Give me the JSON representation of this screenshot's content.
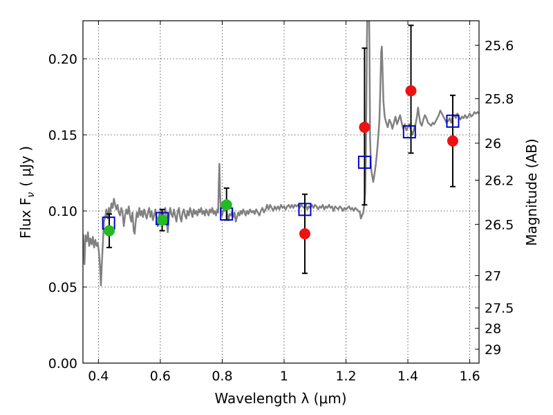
{
  "chart_data": {
    "type": "scatter",
    "xlabel": "Wavelength  λ (μm)",
    "ylabel": "Flux  F",
    "ylabel_sub": "ν",
    "ylabel_unit": "( μJy )",
    "y2label": "Magnitude (AB)",
    "xlim": [
      0.35,
      1.63
    ],
    "ylim": [
      0.0,
      0.225
    ],
    "grid": true,
    "x_ticks": [
      {
        "v": 0.4,
        "label": "0.4"
      },
      {
        "v": 0.6,
        "label": "0.6"
      },
      {
        "v": 0.8,
        "label": "0.8"
      },
      {
        "v": 1.0,
        "label": "1"
      },
      {
        "v": 1.2,
        "label": "1.2"
      },
      {
        "v": 1.4,
        "label": "1.4"
      },
      {
        "v": 1.6,
        "label": "1.6"
      }
    ],
    "y_ticks": [
      {
        "v": 0.0,
        "label": "0.00"
      },
      {
        "v": 0.05,
        "label": "0.05"
      },
      {
        "v": 0.1,
        "label": "0.10"
      },
      {
        "v": 0.15,
        "label": "0.15"
      },
      {
        "v": 0.2,
        "label": "0.20"
      }
    ],
    "mag_ticks": [
      {
        "mag": 25.6,
        "label": "25.6"
      },
      {
        "mag": 25.8,
        "label": "25.8"
      },
      {
        "mag": 26.0,
        "label": "26"
      },
      {
        "mag": 26.2,
        "label": "26.2"
      },
      {
        "mag": 26.5,
        "label": "26.5"
      },
      {
        "mag": 27.0,
        "label": "27"
      },
      {
        "mag": 27.5,
        "label": "27.5"
      },
      {
        "mag": 28.0,
        "label": "28"
      },
      {
        "mag": 29.0,
        "label": "29"
      }
    ],
    "model_spectrum": {
      "color": "#808080",
      "points": [
        [
          0.35,
          0.085
        ],
        [
          0.355,
          0.065
        ],
        [
          0.358,
          0.084
        ],
        [
          0.362,
          0.08
        ],
        [
          0.366,
          0.086
        ],
        [
          0.37,
          0.077
        ],
        [
          0.374,
          0.082
        ],
        [
          0.378,
          0.078
        ],
        [
          0.382,
          0.083
        ],
        [
          0.386,
          0.076
        ],
        [
          0.39,
          0.081
        ],
        [
          0.394,
          0.077
        ],
        [
          0.398,
          0.079
        ],
        [
          0.402,
          0.072
        ],
        [
          0.405,
          0.064
        ],
        [
          0.408,
          0.051
        ],
        [
          0.411,
          0.065
        ],
        [
          0.414,
          0.078
        ],
        [
          0.418,
          0.093
        ],
        [
          0.422,
          0.096
        ],
        [
          0.426,
          0.101
        ],
        [
          0.43,
          0.095
        ],
        [
          0.434,
          0.102
        ],
        [
          0.438,
          0.098
        ],
        [
          0.442,
          0.105
        ],
        [
          0.446,
          0.102
        ],
        [
          0.45,
          0.108
        ],
        [
          0.454,
          0.104
        ],
        [
          0.458,
          0.101
        ],
        [
          0.462,
          0.104
        ],
        [
          0.466,
          0.099
        ],
        [
          0.47,
          0.097
        ],
        [
          0.474,
          0.102
        ],
        [
          0.478,
          0.099
        ],
        [
          0.482,
          0.09
        ],
        [
          0.486,
          0.097
        ],
        [
          0.49,
          0.101
        ],
        [
          0.494,
          0.098
        ],
        [
          0.498,
          0.103
        ],
        [
          0.502,
          0.097
        ],
        [
          0.506,
          0.093
        ],
        [
          0.51,
          0.099
        ],
        [
          0.514,
          0.087
        ],
        [
          0.517,
          0.085
        ],
        [
          0.52,
          0.092
        ],
        [
          0.524,
          0.099
        ],
        [
          0.528,
          0.096
        ],
        [
          0.532,
          0.102
        ],
        [
          0.536,
          0.097
        ],
        [
          0.54,
          0.1
        ],
        [
          0.544,
          0.096
        ],
        [
          0.548,
          0.101
        ],
        [
          0.552,
          0.098
        ],
        [
          0.556,
          0.095
        ],
        [
          0.56,
          0.099
        ],
        [
          0.564,
          0.102
        ],
        [
          0.568,
          0.096
        ],
        [
          0.572,
          0.1
        ],
        [
          0.576,
          0.094
        ],
        [
          0.58,
          0.097
        ],
        [
          0.584,
          0.101
        ],
        [
          0.588,
          0.095
        ],
        [
          0.592,
          0.09
        ],
        [
          0.596,
          0.097
        ],
        [
          0.6,
          0.1
        ],
        [
          0.604,
          0.096
        ],
        [
          0.608,
          0.091
        ],
        [
          0.612,
          0.099
        ],
        [
          0.616,
          0.102
        ],
        [
          0.62,
          0.095
        ],
        [
          0.624,
          0.086
        ],
        [
          0.628,
          0.096
        ],
        [
          0.632,
          0.102
        ],
        [
          0.636,
          0.098
        ],
        [
          0.64,
          0.096
        ],
        [
          0.644,
          0.101
        ],
        [
          0.648,
          0.097
        ],
        [
          0.652,
          0.093
        ],
        [
          0.656,
          0.099
        ],
        [
          0.66,
          0.102
        ],
        [
          0.664,
          0.096
        ],
        [
          0.668,
          0.093
        ],
        [
          0.672,
          0.099
        ],
        [
          0.676,
          0.101
        ],
        [
          0.68,
          0.097
        ],
        [
          0.684,
          0.095
        ],
        [
          0.688,
          0.1
        ],
        [
          0.692,
          0.097
        ],
        [
          0.696,
          0.102
        ],
        [
          0.7,
          0.099
        ],
        [
          0.704,
          0.096
        ],
        [
          0.708,
          0.101
        ],
        [
          0.712,
          0.098
        ],
        [
          0.716,
          0.1
        ],
        [
          0.72,
          0.097
        ],
        [
          0.724,
          0.101
        ],
        [
          0.728,
          0.099
        ],
        [
          0.732,
          0.102
        ],
        [
          0.736,
          0.098
        ],
        [
          0.74,
          0.1
        ],
        [
          0.744,
          0.097
        ],
        [
          0.748,
          0.101
        ],
        [
          0.752,
          0.099
        ],
        [
          0.756,
          0.097
        ],
        [
          0.76,
          0.101
        ],
        [
          0.764,
          0.099
        ],
        [
          0.768,
          0.102
        ],
        [
          0.772,
          0.098
        ],
        [
          0.776,
          0.1
        ],
        [
          0.78,
          0.097
        ],
        [
          0.784,
          0.101
        ],
        [
          0.787,
          0.099
        ],
        [
          0.789,
          0.118
        ],
        [
          0.791,
          0.131
        ],
        [
          0.793,
          0.112
        ],
        [
          0.796,
          0.1
        ],
        [
          0.8,
          0.097
        ],
        [
          0.804,
          0.101
        ],
        [
          0.808,
          0.1
        ],
        [
          0.812,
          0.104
        ],
        [
          0.816,
          0.098
        ],
        [
          0.82,
          0.094
        ],
        [
          0.824,
          0.098
        ],
        [
          0.828,
          0.097
        ],
        [
          0.832,
          0.1
        ],
        [
          0.836,
          0.096
        ],
        [
          0.84,
          0.099
        ],
        [
          0.844,
          0.093
        ],
        [
          0.848,
          0.096
        ],
        [
          0.852,
          0.099
        ],
        [
          0.856,
          0.097
        ],
        [
          0.86,
          0.1
        ],
        [
          0.864,
          0.098
        ],
        [
          0.868,
          0.101
        ],
        [
          0.872,
          0.099
        ],
        [
          0.876,
          0.097
        ],
        [
          0.88,
          0.1
        ],
        [
          0.885,
          0.098
        ],
        [
          0.89,
          0.101
        ],
        [
          0.895,
          0.099
        ],
        [
          0.9,
          0.1
        ],
        [
          0.905,
          0.098
        ],
        [
          0.91,
          0.101
        ],
        [
          0.915,
          0.099
        ],
        [
          0.92,
          0.097
        ],
        [
          0.925,
          0.1
        ],
        [
          0.93,
          0.102
        ],
        [
          0.935,
          0.099
        ],
        [
          0.94,
          0.101
        ],
        [
          0.945,
          0.104
        ],
        [
          0.95,
          0.101
        ],
        [
          0.955,
          0.104
        ],
        [
          0.96,
          0.102
        ],
        [
          0.965,
          0.1
        ],
        [
          0.97,
          0.103
        ],
        [
          0.975,
          0.101
        ],
        [
          0.98,
          0.103
        ],
        [
          0.985,
          0.101
        ],
        [
          0.99,
          0.104
        ],
        [
          0.995,
          0.102
        ],
        [
          1.0,
          0.103
        ],
        [
          1.005,
          0.101
        ],
        [
          1.01,
          0.103
        ],
        [
          1.015,
          0.104
        ],
        [
          1.02,
          0.102
        ],
        [
          1.025,
          0.104
        ],
        [
          1.03,
          0.102
        ],
        [
          1.035,
          0.104
        ],
        [
          1.04,
          0.103
        ],
        [
          1.045,
          0.104
        ],
        [
          1.05,
          0.102
        ],
        [
          1.055,
          0.104
        ],
        [
          1.06,
          0.103
        ],
        [
          1.065,
          0.102
        ],
        [
          1.07,
          0.104
        ],
        [
          1.075,
          0.101
        ],
        [
          1.08,
          0.103
        ],
        [
          1.085,
          0.102
        ],
        [
          1.09,
          0.104
        ],
        [
          1.095,
          0.102
        ],
        [
          1.1,
          0.104
        ],
        [
          1.105,
          0.103
        ],
        [
          1.11,
          0.101
        ],
        [
          1.115,
          0.103
        ],
        [
          1.12,
          0.102
        ],
        [
          1.125,
          0.104
        ],
        [
          1.13,
          0.101
        ],
        [
          1.135,
          0.103
        ],
        [
          1.14,
          0.102
        ],
        [
          1.145,
          0.104
        ],
        [
          1.15,
          0.102
        ],
        [
          1.155,
          0.103
        ],
        [
          1.16,
          0.1
        ],
        [
          1.165,
          0.103
        ],
        [
          1.17,
          0.102
        ],
        [
          1.175,
          0.101
        ],
        [
          1.18,
          0.103
        ],
        [
          1.185,
          0.102
        ],
        [
          1.19,
          0.1
        ],
        [
          1.195,
          0.102
        ],
        [
          1.2,
          0.101
        ],
        [
          1.205,
          0.102
        ],
        [
          1.21,
          0.103
        ],
        [
          1.215,
          0.101
        ],
        [
          1.22,
          0.102
        ],
        [
          1.225,
          0.1
        ],
        [
          1.23,
          0.102
        ],
        [
          1.235,
          0.101
        ],
        [
          1.24,
          0.1
        ],
        [
          1.245,
          0.099
        ],
        [
          1.248,
          0.095
        ],
        [
          1.252,
          0.097
        ],
        [
          1.256,
          0.099
        ],
        [
          1.259,
          0.104
        ],
        [
          1.262,
          0.112
        ],
        [
          1.264,
          0.135
        ],
        [
          1.266,
          0.175
        ],
        [
          1.268,
          0.215
        ],
        [
          1.27,
          0.24
        ],
        [
          1.274,
          0.245
        ],
        [
          1.276,
          0.205
        ],
        [
          1.278,
          0.148
        ],
        [
          1.281,
          0.128
        ],
        [
          1.284,
          0.124
        ],
        [
          1.288,
          0.119
        ],
        [
          1.292,
          0.124
        ],
        [
          1.296,
          0.13
        ],
        [
          1.3,
          0.138
        ],
        [
          1.304,
          0.148
        ],
        [
          1.308,
          0.16
        ],
        [
          1.311,
          0.18
        ],
        [
          1.314,
          0.205
        ],
        [
          1.316,
          0.208
        ],
        [
          1.318,
          0.195
        ],
        [
          1.321,
          0.172
        ],
        [
          1.325,
          0.162
        ],
        [
          1.33,
          0.158
        ],
        [
          1.335,
          0.155
        ],
        [
          1.34,
          0.16
        ],
        [
          1.345,
          0.158
        ],
        [
          1.35,
          0.154
        ],
        [
          1.355,
          0.158
        ],
        [
          1.36,
          0.162
        ],
        [
          1.365,
          0.157
        ],
        [
          1.37,
          0.16
        ],
        [
          1.375,
          0.163
        ],
        [
          1.38,
          0.158
        ],
        [
          1.385,
          0.154
        ],
        [
          1.39,
          0.157
        ],
        [
          1.395,
          0.153
        ],
        [
          1.4,
          0.155
        ],
        [
          1.405,
          0.157
        ],
        [
          1.41,
          0.153
        ],
        [
          1.415,
          0.15
        ],
        [
          1.42,
          0.154
        ],
        [
          1.425,
          0.157
        ],
        [
          1.43,
          0.163
        ],
        [
          1.433,
          0.168
        ],
        [
          1.436,
          0.163
        ],
        [
          1.44,
          0.158
        ],
        [
          1.445,
          0.156
        ],
        [
          1.45,
          0.16
        ],
        [
          1.455,
          0.163
        ],
        [
          1.46,
          0.161
        ],
        [
          1.465,
          0.158
        ],
        [
          1.47,
          0.157
        ],
        [
          1.475,
          0.156
        ],
        [
          1.48,
          0.158
        ],
        [
          1.485,
          0.157
        ],
        [
          1.49,
          0.159
        ],
        [
          1.495,
          0.161
        ],
        [
          1.5,
          0.163
        ],
        [
          1.505,
          0.166
        ],
        [
          1.51,
          0.164
        ],
        [
          1.515,
          0.162
        ],
        [
          1.52,
          0.16
        ],
        [
          1.525,
          0.158
        ],
        [
          1.53,
          0.159
        ],
        [
          1.535,
          0.161
        ],
        [
          1.54,
          0.158
        ],
        [
          1.545,
          0.162
        ],
        [
          1.55,
          0.163
        ],
        [
          1.555,
          0.161
        ],
        [
          1.56,
          0.164
        ],
        [
          1.565,
          0.162
        ],
        [
          1.57,
          0.16
        ],
        [
          1.575,
          0.162
        ],
        [
          1.58,
          0.161
        ],
        [
          1.585,
          0.163
        ],
        [
          1.59,
          0.161
        ],
        [
          1.595,
          0.162
        ],
        [
          1.6,
          0.164
        ],
        [
          1.605,
          0.162
        ],
        [
          1.61,
          0.163
        ],
        [
          1.615,
          0.165
        ],
        [
          1.62,
          0.164
        ],
        [
          1.625,
          0.165
        ],
        [
          1.63,
          0.164
        ]
      ]
    },
    "errorbars": [
      {
        "x": 0.435,
        "lo": 0.076,
        "hi": 0.098
      },
      {
        "x": 0.606,
        "lo": 0.087,
        "hi": 0.101
      },
      {
        "x": 0.814,
        "lo": 0.094,
        "hi": 0.115
      },
      {
        "x": 1.067,
        "lo": 0.059,
        "hi": 0.111
      },
      {
        "x": 1.26,
        "lo": 0.104,
        "hi": 0.207
      },
      {
        "x": 1.41,
        "lo": 0.138,
        "hi": 0.222
      },
      {
        "x": 1.545,
        "lo": 0.116,
        "hi": 0.176
      }
    ],
    "series": [
      {
        "marker": "square-open",
        "color": "#0000cc",
        "points": [
          [
            0.433,
            0.092
          ],
          [
            0.606,
            0.095
          ],
          [
            0.814,
            0.098
          ],
          [
            1.067,
            0.101
          ],
          [
            1.26,
            0.132
          ],
          [
            1.405,
            0.152
          ],
          [
            1.545,
            0.159
          ]
        ]
      },
      {
        "marker": "circle-filled",
        "color": "#22bb22",
        "points": [
          [
            0.435,
            0.087
          ],
          [
            0.606,
            0.094
          ],
          [
            0.814,
            0.104
          ]
        ]
      },
      {
        "marker": "circle-filled",
        "color": "#ee1111",
        "points": [
          [
            1.067,
            0.085
          ],
          [
            1.26,
            0.155
          ],
          [
            1.41,
            0.179
          ],
          [
            1.545,
            0.146
          ]
        ]
      }
    ]
  }
}
